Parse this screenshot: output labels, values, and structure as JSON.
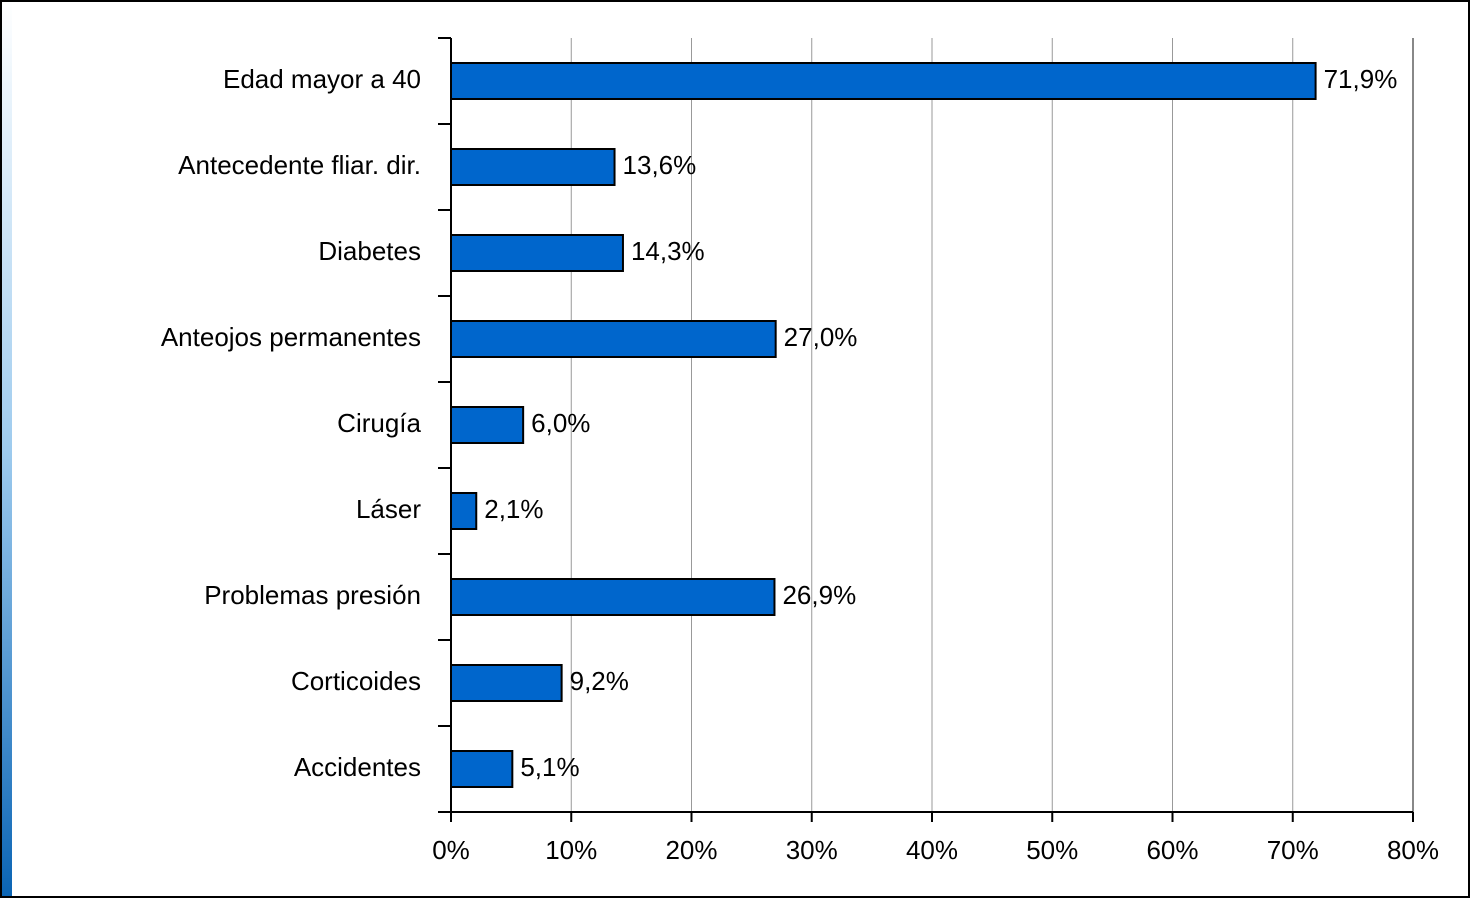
{
  "chart_data": {
    "type": "bar",
    "orientation": "horizontal",
    "categories": [
      "Edad mayor a 40",
      "Antecedente fliar. dir.",
      "Diabetes",
      "Anteojos permanentes",
      "Cirugía",
      "Láser",
      "Problemas presión",
      "Corticoides",
      "Accidentes"
    ],
    "values": [
      71.9,
      13.6,
      14.3,
      27.0,
      6.0,
      2.1,
      26.9,
      9.2,
      5.1
    ],
    "value_labels": [
      "71,9%",
      "13,6%",
      "14,3%",
      "27,0%",
      "6,0%",
      "2,1%",
      "26,9%",
      "9,2%",
      "5,1%"
    ],
    "color": "#0066cc",
    "xlim": [
      0,
      80
    ],
    "xticks": [
      {
        "value": 0,
        "label": "0%"
      },
      {
        "value": 10,
        "label": "10%"
      },
      {
        "value": 20,
        "label": "20%"
      },
      {
        "value": 30,
        "label": "30%"
      },
      {
        "value": 40,
        "label": "40%"
      },
      {
        "value": 50,
        "label": "50%"
      },
      {
        "value": 60,
        "label": "60%"
      },
      {
        "value": 70,
        "label": "70%"
      },
      {
        "value": 80,
        "label": "80%"
      }
    ],
    "grid": true
  }
}
